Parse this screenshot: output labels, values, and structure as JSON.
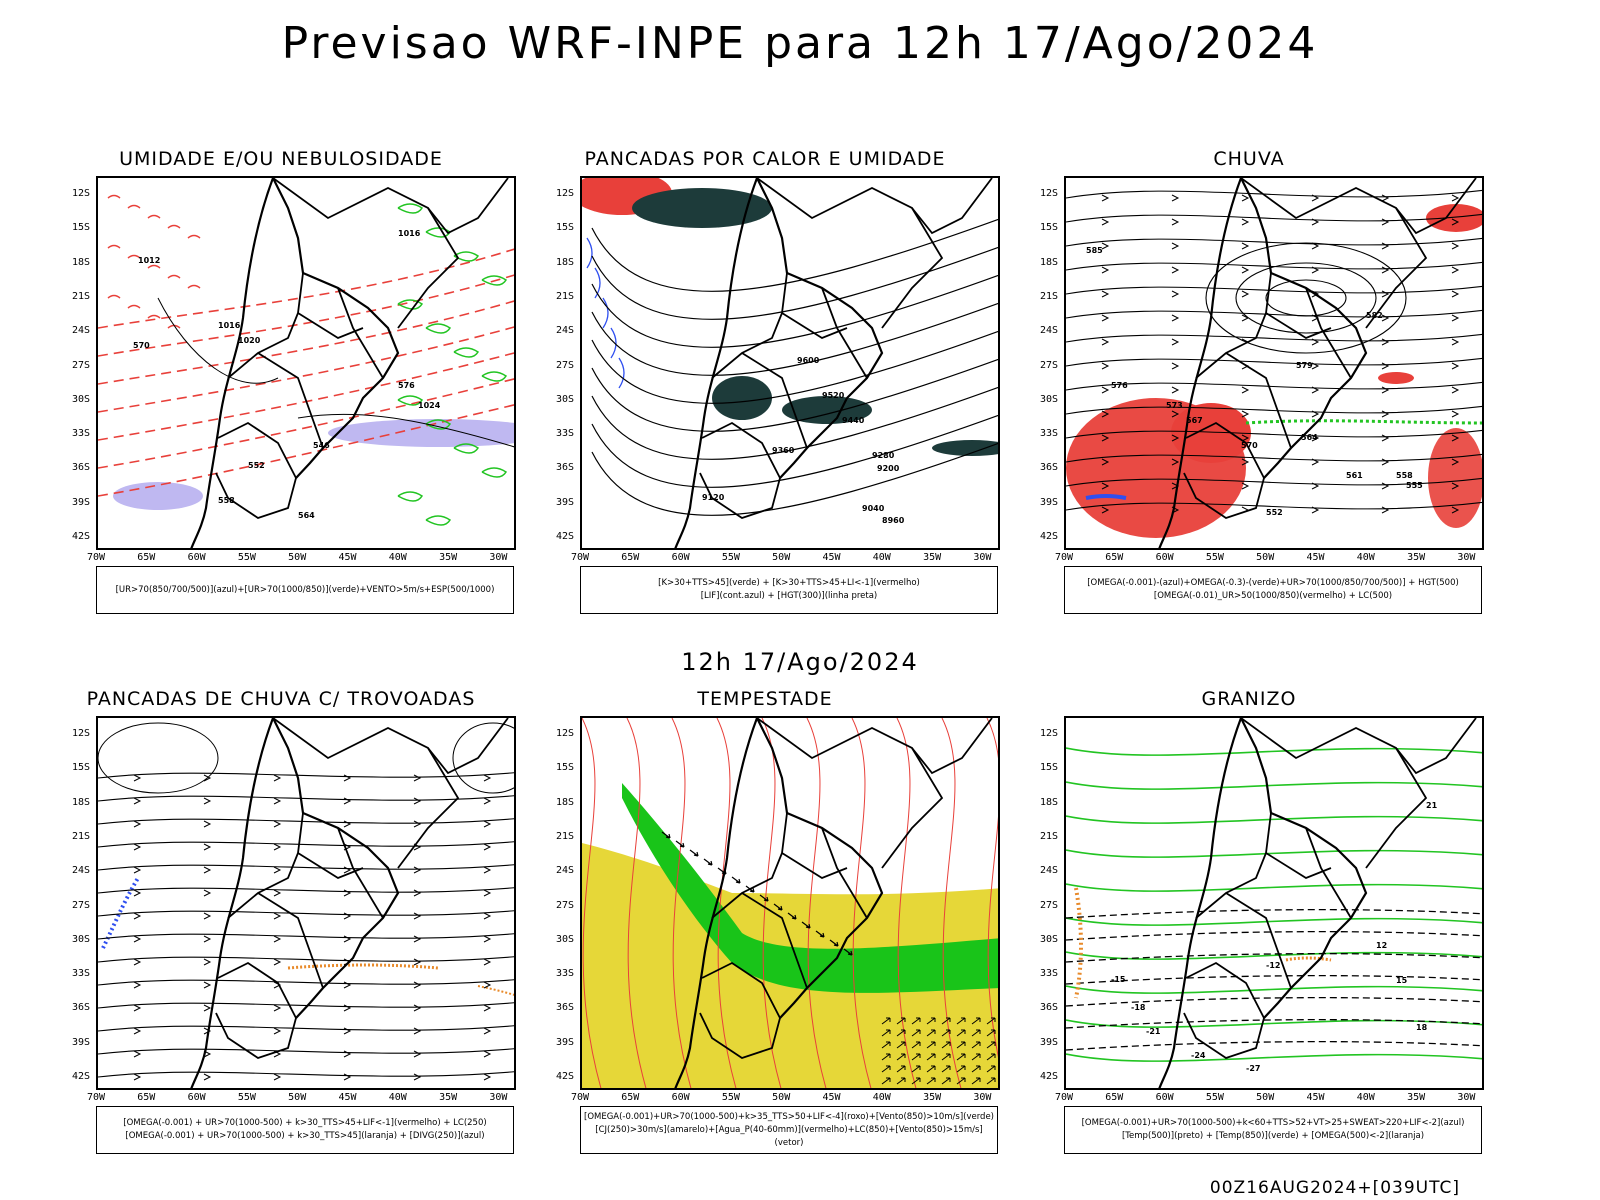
{
  "title": "Previsao WRF-INPE  para 12h 17/Ago/2024",
  "mid_title": "12h 17/Ago/2024",
  "footer": "00Z16AUG2024+[039UTC]",
  "lat_labels": [
    "12S",
    "15S",
    "18S",
    "21S",
    "24S",
    "27S",
    "30S",
    "33S",
    "36S",
    "39S",
    "42S"
  ],
  "lon_labels": [
    "70W",
    "65W",
    "60W",
    "55W",
    "50W",
    "45W",
    "40W",
    "35W",
    "30W"
  ],
  "colors": {
    "red": "#e8403a",
    "green": "#22c422",
    "blue": "#2f4ff0",
    "yellow": "#e6d738",
    "orange": "#e88a2a",
    "darkteal": "#1d3b3a",
    "lavender": "#b8b0f0"
  },
  "panels": [
    {
      "id": "umidade",
      "title": "UMIDADE E/OU NEBULOSIDADE",
      "legend": [
        "[UR>70(850/700/500)](azul)+[UR>70(1000/850)](verde)+VENTO>5m/s+ESP(500/1000)"
      ],
      "isolines": [
        "1012",
        "1016",
        "1020",
        "1024",
        "1016",
        "546",
        "552",
        "558",
        "564",
        "570",
        "576"
      ]
    },
    {
      "id": "pancadas-calor",
      "title": "PANCADAS POR CALOR E UMIDADE",
      "legend": [
        "[K>30+TTS>45](verde) + [K>30+TTS>45+LI<-1](vermelho)",
        "[LIF](cont.azul) + [HGT(300)](linha preta)"
      ],
      "isolines": [
        "9600",
        "9520",
        "9440",
        "9360",
        "9280",
        "9200",
        "9120",
        "9040",
        "8960"
      ]
    },
    {
      "id": "chuva",
      "title": "CHUVA",
      "legend": [
        "[OMEGA(-0.001)-(azul)+OMEGA(-0.3)-(verde)+UR>70(1000/850/700/500)] + HGT(500)",
        "[OMEGA(-0.01)_UR>50(1000/850)(vermelho) + LC(500)"
      ],
      "isolines": [
        "585",
        "582",
        "579",
        "576",
        "573",
        "570",
        "567",
        "564",
        "561",
        "558",
        "555",
        "552"
      ]
    },
    {
      "id": "pancadas-trovoadas",
      "title": "PANCADAS DE CHUVA C/ TROVOADAS",
      "legend": [
        "[OMEGA(-0.001) + UR>70(1000-500) + k>30_TTS>45+LIF<-1](vermelho) + LC(250)",
        "[OMEGA(-0.001) + UR>70(1000-500) + k>30_TTS>45](laranja) + [DIVG(250)](azul)"
      ],
      "isolines": []
    },
    {
      "id": "tempestade",
      "title": "TEMPESTADE",
      "legend": [
        "[OMEGA(-0.001)+UR>70(1000-500)+k>35_TTS>50+LIF<-4](roxo)+[Vento(850)>10m/s](verde)",
        "[CJ(250)>30m/s](amarelo)+[Agua_P(40-60mm)](vermelho)+LC(850)+[Vento(850)>15m/s](vetor)"
      ],
      "isolines": []
    },
    {
      "id": "granizo",
      "title": "GRANIZO",
      "legend": [
        "[OMEGA(-0.001)+UR>70(1000-500)+k<60+TTS>52+VT>25+SWEAT>220+LIF<-2](azul)",
        "[Temp(500)](preto) + [Temp(850)](verde) + [OMEGA(500)<-2](laranja)"
      ],
      "isolines": [
        "-12",
        "-15",
        "-18",
        "-21",
        "-24",
        "-27",
        "12",
        "15",
        "18",
        "21"
      ]
    }
  ]
}
